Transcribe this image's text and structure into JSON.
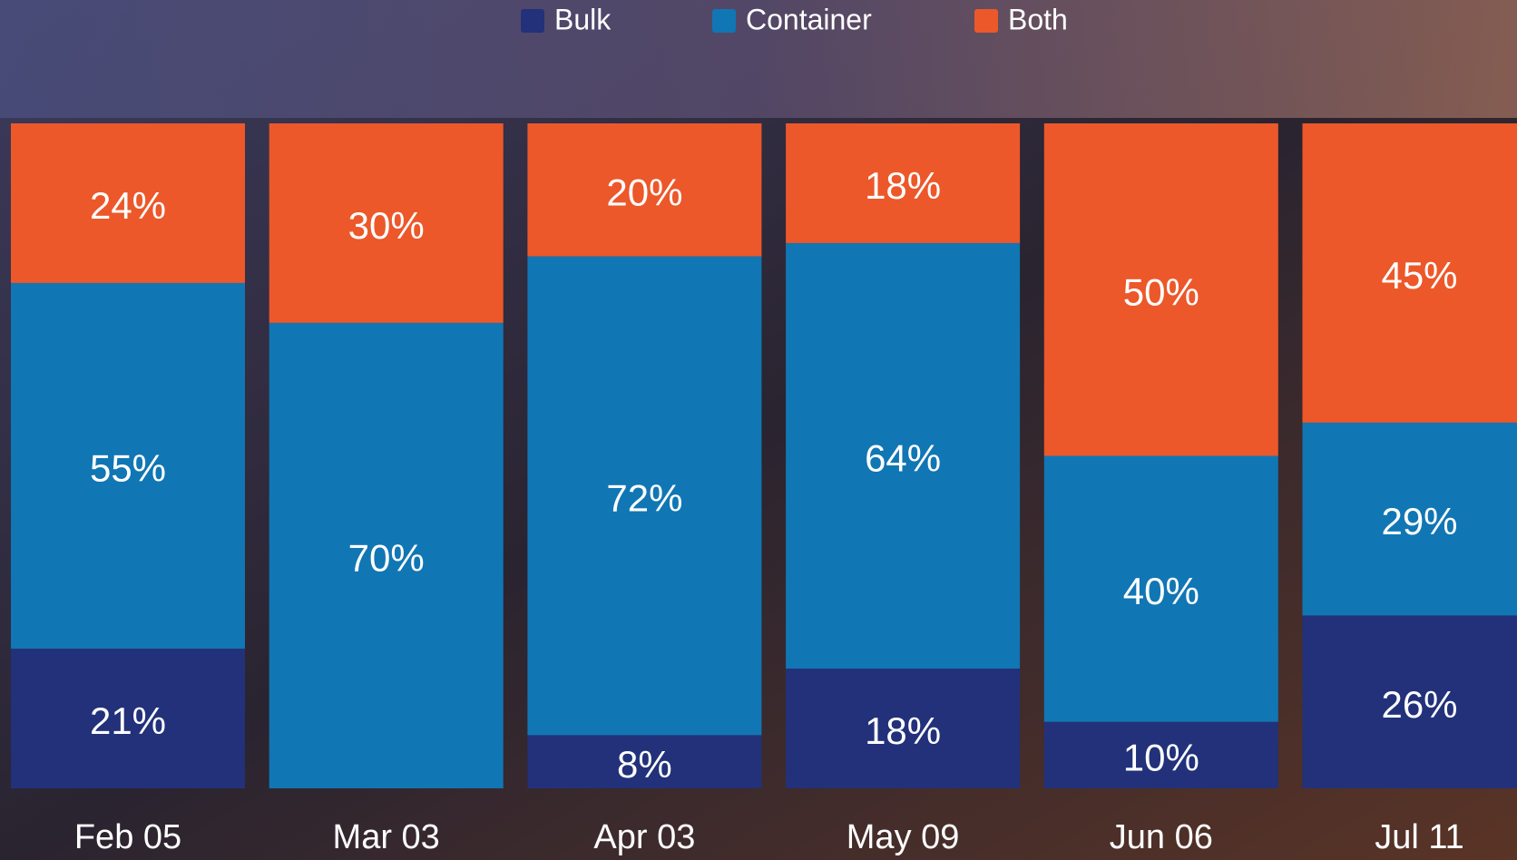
{
  "chart_data": {
    "type": "stacked_bar",
    "categories": [
      "Feb 05",
      "Mar 03",
      "Apr 03",
      "May 09",
      "Jun 06",
      "Jul 11"
    ],
    "series": [
      {
        "name": "Bulk",
        "color": "#22317a",
        "values": [
          21,
          0,
          8,
          18,
          10,
          26
        ],
        "value_labels": [
          "21%",
          null,
          "8%",
          "18%",
          "10%",
          "26%"
        ]
      },
      {
        "name": "Container",
        "color": "#1176b4",
        "values": [
          55,
          70,
          72,
          64,
          40,
          29
        ],
        "value_labels": [
          "55%",
          "70%",
          "72%",
          "64%",
          "40%",
          "29%"
        ]
      },
      {
        "name": "Both",
        "color": "#ec582a",
        "values": [
          24,
          30,
          20,
          18,
          50,
          45
        ],
        "value_labels": [
          "24%",
          "30%",
          "20%",
          "18%",
          "50%",
          "45%"
        ]
      }
    ]
  }
}
